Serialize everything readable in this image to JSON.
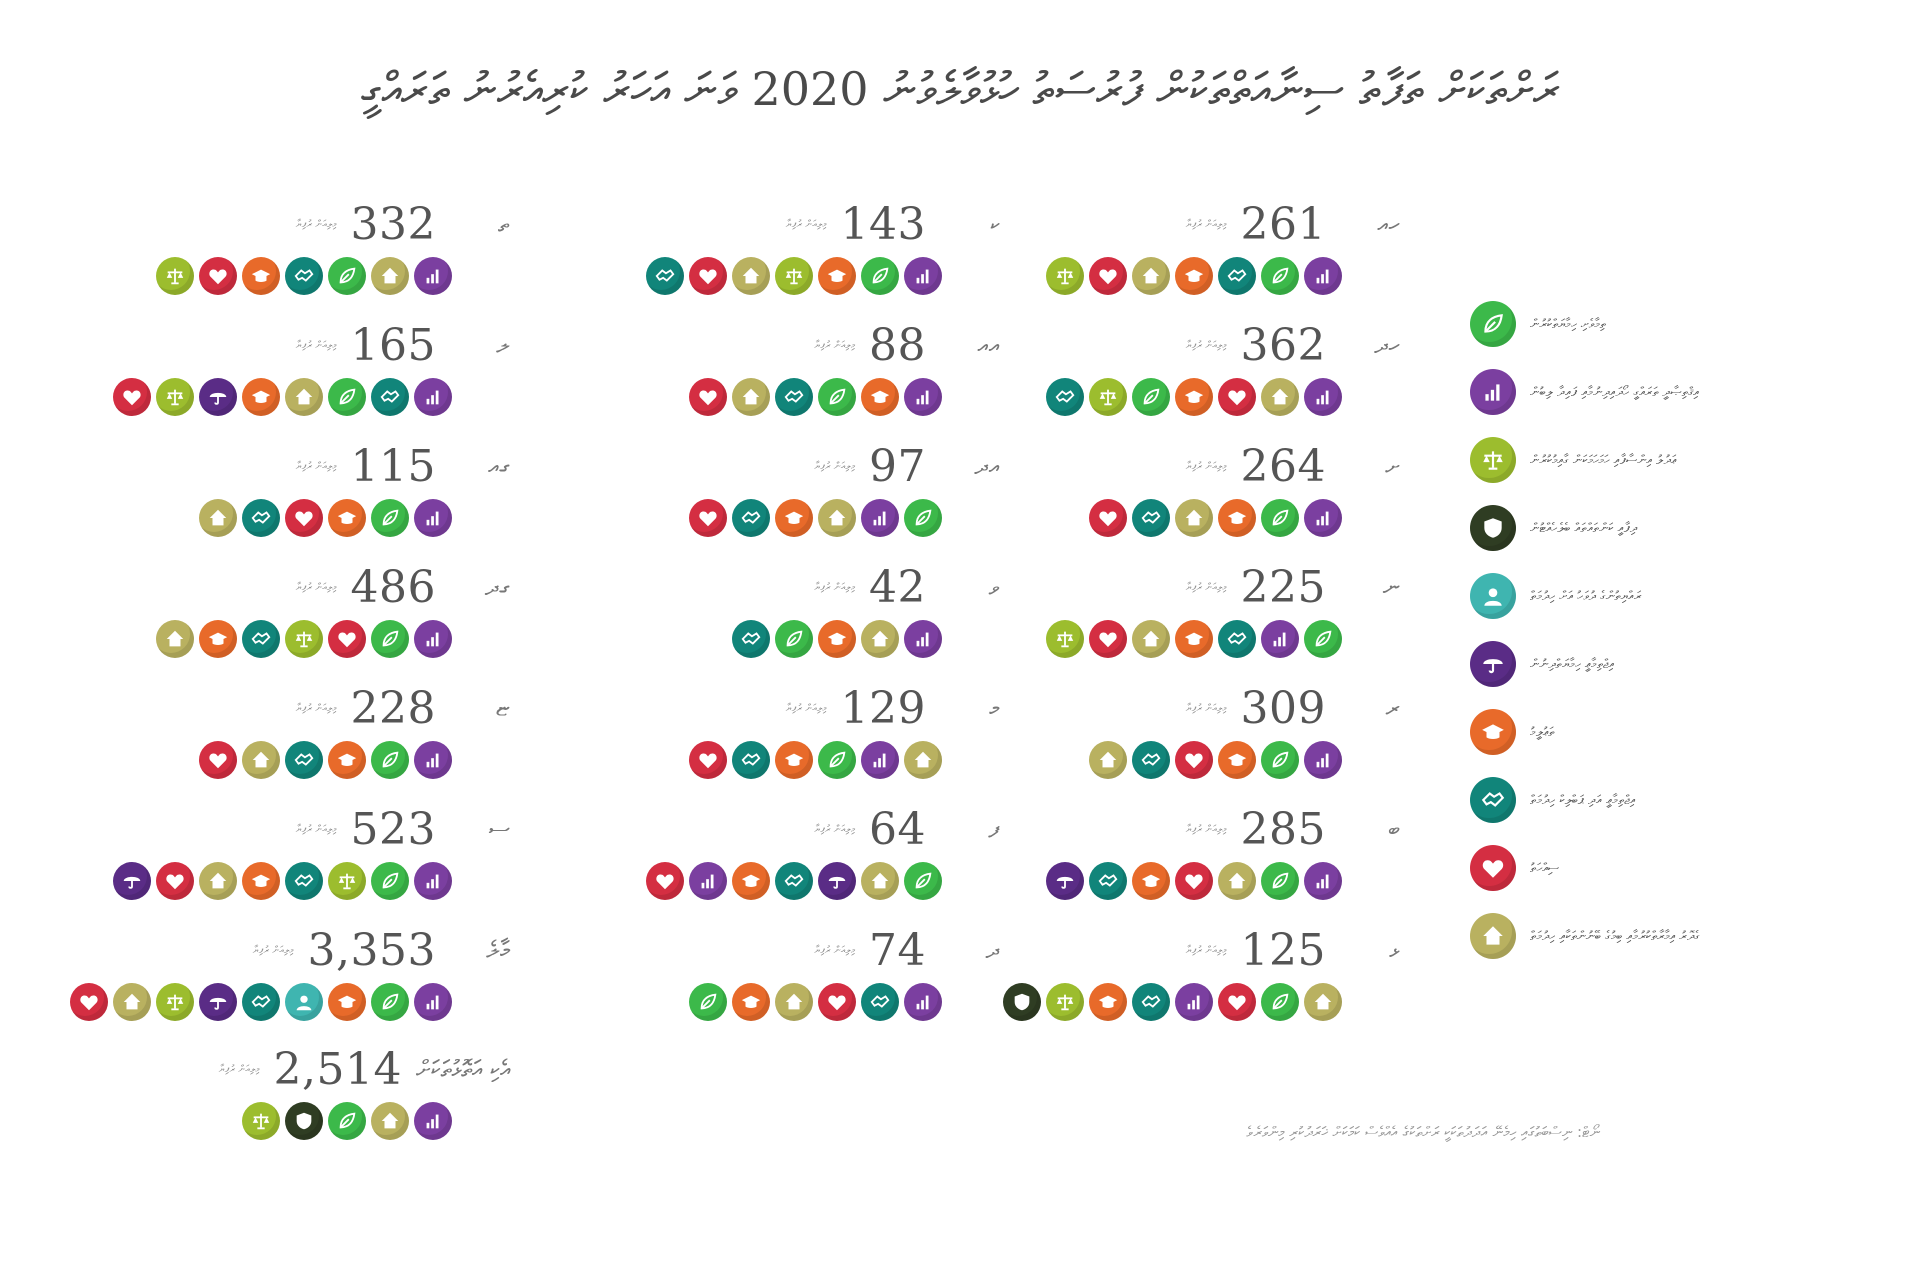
{
  "title": "ރަށްތަކަށް ތަފާތު ސިނާއަތްތަކުން ފުރުސަތު ހުޅުވާލެވުނު 2020 ވަނަ އަހަރު ކުރިއެރުނު ތަރައްގީ",
  "unit_label": "މިލިއަން ރުފިޔާ",
  "columns": [
    {
      "entries": [
        {
          "name": "ހއ",
          "value": "261",
          "icons": [
            "justice",
            "health",
            "housing",
            "education",
            "labour",
            "environment",
            "econ"
          ]
        },
        {
          "name": "ހދ",
          "value": "362",
          "icons": [
            "labour",
            "justice",
            "environment",
            "education",
            "health",
            "housing",
            "econ"
          ]
        },
        {
          "name": "ށ",
          "value": "264",
          "icons": [
            "health",
            "labour",
            "housing",
            "education",
            "environment",
            "econ"
          ]
        },
        {
          "name": "ނ",
          "value": "225",
          "icons": [
            "justice",
            "health",
            "housing",
            "education",
            "labour",
            "econ",
            "environment"
          ]
        },
        {
          "name": "ރ",
          "value": "309",
          "icons": [
            "housing",
            "labour",
            "health",
            "education",
            "environment",
            "econ"
          ]
        },
        {
          "name": "ބ",
          "value": "285",
          "icons": [
            "protect",
            "labour",
            "education",
            "health",
            "housing",
            "environment",
            "econ"
          ]
        },
        {
          "name": "ޅ",
          "value": "125",
          "icons": [
            "security",
            "justice",
            "education",
            "labour",
            "econ",
            "health",
            "environment",
            "housing"
          ]
        }
      ]
    },
    {
      "entries": [
        {
          "name": "ކ",
          "value": "143",
          "icons": [
            "labour",
            "health",
            "housing",
            "justice",
            "education",
            "environment",
            "econ"
          ]
        },
        {
          "name": "އއ",
          "value": "88",
          "icons": [
            "health",
            "housing",
            "labour",
            "environment",
            "education",
            "econ"
          ]
        },
        {
          "name": "އދ",
          "value": "97",
          "icons": [
            "health",
            "labour",
            "education",
            "housing",
            "econ",
            "environment"
          ]
        },
        {
          "name": "ވ",
          "value": "42",
          "icons": [
            "labour",
            "environment",
            "education",
            "housing",
            "econ"
          ]
        },
        {
          "name": "މ",
          "value": "129",
          "icons": [
            "health",
            "labour",
            "education",
            "environment",
            "econ",
            "housing"
          ]
        },
        {
          "name": "ފ",
          "value": "64",
          "icons": [
            "health",
            "econ",
            "education",
            "labour",
            "protect",
            "housing",
            "environment"
          ]
        },
        {
          "name": "ދ",
          "value": "74",
          "icons": [
            "environment",
            "education",
            "housing",
            "health",
            "labour",
            "econ"
          ]
        }
      ]
    },
    {
      "entries": [
        {
          "name": "ތ",
          "value": "332",
          "icons": [
            "justice",
            "health",
            "education",
            "labour",
            "environment",
            "housing",
            "econ"
          ]
        },
        {
          "name": "ލ",
          "value": "165",
          "icons": [
            "health",
            "justice",
            "protect",
            "education",
            "housing",
            "environment",
            "labour",
            "econ"
          ]
        },
        {
          "name": "ގއ",
          "value": "115",
          "icons": [
            "housing",
            "labour",
            "health",
            "education",
            "environment",
            "econ"
          ]
        },
        {
          "name": "ގދ",
          "value": "486",
          "icons": [
            "housing",
            "education",
            "labour",
            "justice",
            "health",
            "environment",
            "econ"
          ]
        },
        {
          "name": "ޏ",
          "value": "228",
          "icons": [
            "health",
            "housing",
            "labour",
            "education",
            "environment",
            "econ"
          ]
        },
        {
          "name": "ސ",
          "value": "523",
          "icons": [
            "protect",
            "health",
            "housing",
            "education",
            "labour",
            "justice",
            "environment",
            "econ"
          ]
        },
        {
          "name": "މާލެ",
          "value": "3,353",
          "icons": [
            "health",
            "housing",
            "justice",
            "protect",
            "labour",
            "social",
            "education",
            "environment",
            "econ"
          ]
        }
      ]
    }
  ],
  "total": {
    "name": "އެކި އަތޮޅުތަކަށް",
    "value": "2,514",
    "icons": [
      "justice",
      "security",
      "environment",
      "housing",
      "econ"
    ]
  },
  "legend": [
    {
      "icon": "environment",
      "label": "ތިމާވެށި ހިމާޔަތްކުރުން"
    },
    {
      "icon": "econ",
      "label": "އިޤްތިޞާދީ ތަރައްގީ ހޯދައިދިނުމާއި ފައިދާ ލިބުން"
    },
    {
      "icon": "justice",
      "label": "ޢަދުލު އިންސާފާއި ހަމަހަމަކަން ގާއިމުކުރުން"
    },
    {
      "icon": "security",
      "label": "ދިފާއީ ކަންތައްތައް ބެލެހެއްޓުން"
    },
    {
      "icon": "social",
      "label": "ރައްޔިތުންގެ ދުވަހު އަށް ހިދުމަތް"
    },
    {
      "icon": "protect",
      "label": "އިޖްތިމާޢީ ހިމާޔަތްދިނުން"
    },
    {
      "icon": "education",
      "label": "ތަޢުލީމު"
    },
    {
      "icon": "labour",
      "label": "އިޖްތިމާޢީ އަދި ޕަބްލިކް ހިދުމަތް"
    },
    {
      "icon": "health",
      "label": "ސިއްހަތު"
    },
    {
      "icon": "housing",
      "label": "ގެދޮރު އިމާރާތްކުރުމާއި ބިމުގެ ބޭނުންތަކާއި ހިދުމަތް"
    }
  ],
  "note": "ނޯޓް: ނިސްބަތުގައި ހިމެނޭ އަދަދުތަކަކީ ރަށްތަކުގެ އެއްވެސް ކަމަކަށް ޚަރަދުކުރި މިންވަރެވެ"
}
